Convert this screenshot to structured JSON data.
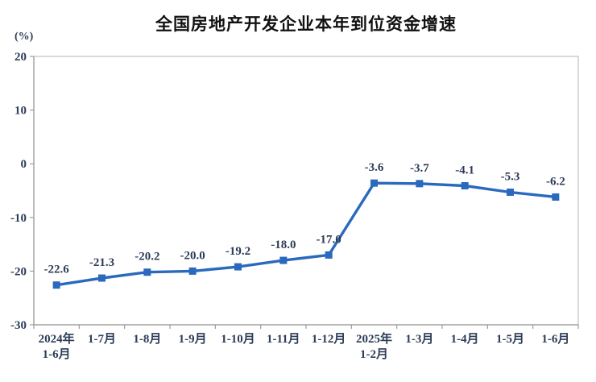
{
  "chart_data": {
    "type": "line",
    "title": "全国房地产开发企业本年到位资金增速",
    "unit_label": "(%)",
    "categories": [
      "2024年1-6月",
      "1-7月",
      "1-8月",
      "1-9月",
      "1-10月",
      "1-11月",
      "1-12月",
      "2025年1-2月",
      "1-3月",
      "1-4月",
      "1-5月",
      "1-6月"
    ],
    "category_lines": [
      [
        "2024年",
        "1-6月"
      ],
      [
        "1-7月"
      ],
      [
        "1-8月"
      ],
      [
        "1-9月"
      ],
      [
        "1-10月"
      ],
      [
        "1-11月"
      ],
      [
        "1-12月"
      ],
      [
        "2025年",
        "1-2月"
      ],
      [
        "1-3月"
      ],
      [
        "1-4月"
      ],
      [
        "1-5月"
      ],
      [
        "1-6月"
      ]
    ],
    "values": [
      -22.6,
      -21.3,
      -20.2,
      -20.0,
      -19.2,
      -18.0,
      -17.0,
      -3.6,
      -3.7,
      -4.1,
      -5.3,
      -6.2
    ],
    "data_labels": [
      "-22.6",
      "-21.3",
      "-20.2",
      "-20.0",
      "-19.2",
      "-18.0",
      "-17.0",
      "-3.6",
      "-3.7",
      "-4.1",
      "-5.3",
      "-6.2"
    ],
    "ylim": [
      -30,
      20
    ],
    "yticks": [
      20,
      10,
      0,
      -10,
      -20,
      -30
    ],
    "ytick_labels": [
      "20",
      "10",
      "0",
      "-10",
      "-20",
      "-30"
    ],
    "xlabel": "",
    "ylabel": "(%)",
    "grid": false,
    "legend_position": "none",
    "marker": "square",
    "colors": {
      "line": "#2a69bd",
      "marker": "#2a69bd",
      "text": "#2d3c58",
      "title": "#111111",
      "plot_border": "#c9c9c9",
      "axis": "#9c9c9c"
    }
  }
}
